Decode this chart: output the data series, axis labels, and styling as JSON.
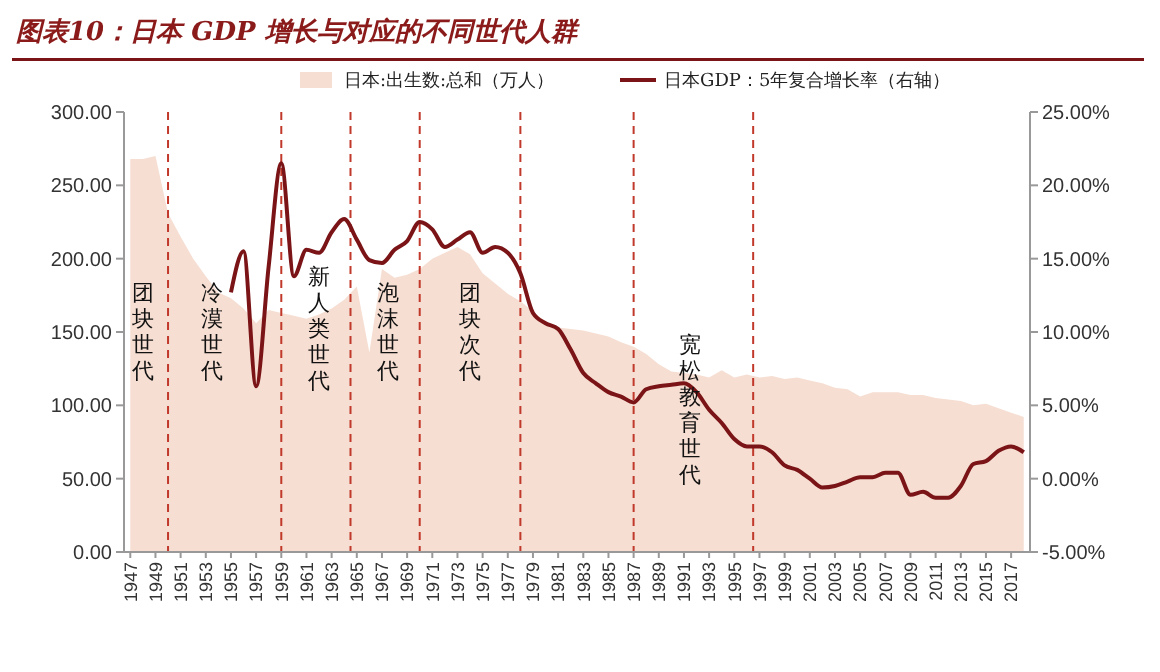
{
  "chart_data": {
    "type": "area",
    "title": "图表10：日本 GDP 增长与对应的不同世代人群",
    "x": [
      1947,
      1948,
      1949,
      1950,
      1951,
      1952,
      1953,
      1954,
      1955,
      1956,
      1957,
      1958,
      1959,
      1960,
      1961,
      1962,
      1963,
      1964,
      1965,
      1966,
      1967,
      1968,
      1969,
      1970,
      1971,
      1972,
      1973,
      1974,
      1975,
      1976,
      1977,
      1978,
      1979,
      1980,
      1981,
      1982,
      1983,
      1984,
      1985,
      1986,
      1987,
      1988,
      1989,
      1990,
      1991,
      1992,
      1993,
      1994,
      1995,
      1996,
      1997,
      1998,
      1999,
      2000,
      2001,
      2002,
      2003,
      2004,
      2005,
      2006,
      2007,
      2008,
      2009,
      2010,
      2011,
      2012,
      2013,
      2014,
      2015,
      2016,
      2017,
      2018
    ],
    "series": [
      {
        "name": "日本:出生数:总和（万人）",
        "color": "#f6ded2",
        "values": [
          268,
          268,
          270,
          231,
          215,
          200,
          188,
          177,
          173,
          166,
          156,
          165,
          163,
          161,
          159,
          162,
          166,
          172,
          181,
          136,
          193,
          187,
          189,
          193,
          200,
          204,
          208,
          203,
          190,
          183,
          176,
          171,
          164,
          157,
          153,
          152,
          151,
          149,
          147,
          143,
          140,
          135,
          128,
          123,
          122,
          121,
          119,
          124,
          119,
          121,
          119,
          120,
          118,
          119,
          117,
          115,
          112,
          111,
          106,
          109,
          109,
          109,
          107,
          107,
          105,
          104,
          103,
          100,
          101,
          98,
          95,
          92
        ]
      },
      {
        "name": "日本GDP：5年复合增长率（右轴）",
        "type": "line",
        "axis": "y2",
        "color": "#7a1416",
        "values": [
          null,
          null,
          null,
          null,
          null,
          null,
          null,
          null,
          12.7,
          15.5,
          6.3,
          14.5,
          21.5,
          13.8,
          15.6,
          15.4,
          16.8,
          17.7,
          16.3,
          14.9,
          14.7,
          15.6,
          16.2,
          17.5,
          17.0,
          15.8,
          16.3,
          16.8,
          15.4,
          15.8,
          15.4,
          14.0,
          11.3,
          10.6,
          10.2,
          8.8,
          7.2,
          6.5,
          5.9,
          5.6,
          5.2,
          6.1,
          6.3,
          6.4,
          6.5,
          5.9,
          4.7,
          3.8,
          2.7,
          2.2,
          2.2,
          1.8,
          0.9,
          0.6,
          0.0,
          -0.6,
          -0.5,
          -0.2,
          0.1,
          0.1,
          0.4,
          0.4,
          -1.1,
          -0.9,
          -1.3,
          -1.3,
          -0.5,
          1.0,
          1.2,
          1.9,
          2.2,
          1.8
        ]
      }
    ],
    "xlim": [
      1946.5,
      2018.5
    ],
    "xticks": [
      1947,
      1949,
      1951,
      1953,
      1955,
      1957,
      1959,
      1961,
      1963,
      1965,
      1967,
      1969,
      1971,
      1973,
      1975,
      1977,
      1979,
      1981,
      1983,
      1985,
      1987,
      1989,
      1991,
      1993,
      1995,
      1997,
      1999,
      2001,
      2003,
      2005,
      2007,
      2009,
      2011,
      2013,
      2015,
      2017
    ],
    "ylim": [
      0,
      300
    ],
    "yticks": [
      {
        "value": 0,
        "label": "0.00"
      },
      {
        "value": 50,
        "label": "50.00"
      },
      {
        "value": 100,
        "label": "100.00"
      },
      {
        "value": 150,
        "label": "150.00"
      },
      {
        "value": 200,
        "label": "200.00"
      },
      {
        "value": 250,
        "label": "250.00"
      },
      {
        "value": 300,
        "label": "300.00"
      }
    ],
    "y2lim": [
      -5,
      25
    ],
    "y2ticks": [
      {
        "value": -5,
        "label": "-5.00%"
      },
      {
        "value": 0,
        "label": "0.00%"
      },
      {
        "value": 5,
        "label": "5.00%"
      },
      {
        "value": 10,
        "label": "10.00%"
      },
      {
        "value": 15,
        "label": "15.00%"
      },
      {
        "value": 20,
        "label": "20.00%"
      },
      {
        "value": 25,
        "label": "25.00%"
      }
    ],
    "ref_lines": [
      {
        "axis": "x",
        "value": 1950,
        "color": "#c0392b",
        "line_style": "dashed"
      },
      {
        "axis": "x",
        "value": 1959,
        "color": "#c0392b",
        "line_style": "dashed"
      },
      {
        "axis": "x",
        "value": 1964.5,
        "color": "#c0392b",
        "line_style": "dashed"
      },
      {
        "axis": "x",
        "value": 1970,
        "color": "#c0392b",
        "line_style": "dashed"
      },
      {
        "axis": "x",
        "value": 1978,
        "color": "#c0392b",
        "line_style": "dashed"
      },
      {
        "axis": "x",
        "value": 1987,
        "color": "#c0392b",
        "line_style": "dashed"
      },
      {
        "axis": "x",
        "value": 1996.5,
        "color": "#c0392b",
        "line_style": "dashed"
      }
    ],
    "annotations": [
      "团块世代",
      "冷漠世代",
      "新人类世代",
      "泡沫世代",
      "团块次代",
      "宽松教育世代"
    ],
    "legend": "top",
    "grid": false,
    "line_style": "solid",
    "marker": "none"
  }
}
